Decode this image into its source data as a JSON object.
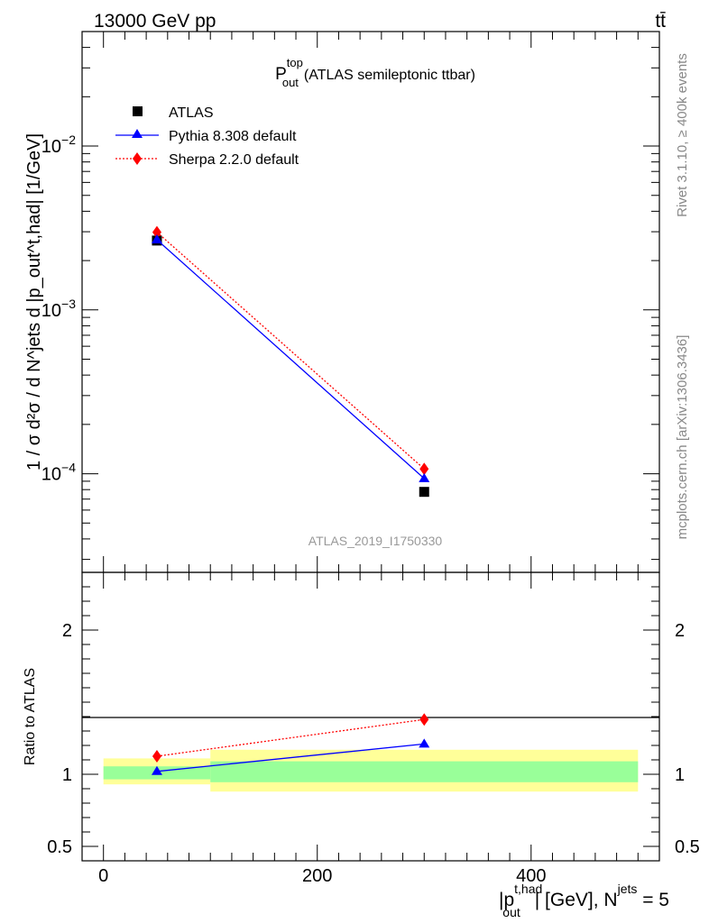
{
  "header": {
    "energy_label": "13000 GeV pp",
    "process_label": "tt̄"
  },
  "side": {
    "rivet_label": "Rivet 3.1.10, ≥ 400k events",
    "site_label": "mcplots.cern.ch [arXiv:1306.3436]"
  },
  "watermark": "ATLAS_2019_I1750330",
  "colors": {
    "atlas": "#000000",
    "pythia": "#0000ff",
    "sherpa": "#ff0000",
    "band_outer": "#ffff99",
    "band_inner": "#99ff99"
  },
  "chart_data": [
    {
      "type": "line",
      "panel": "main",
      "title_main": "P",
      "title_sup": "top",
      "title_sub": "out",
      "title_rest": "(ATLAS semileptonic ttbar)",
      "ylabel": "1 / σ d²σ / d N^jets d |p_out^t,had| [1/GeV]",
      "yscale": "log",
      "ylim": [
        2.5e-05,
        0.05
      ],
      "xlim": [
        -20,
        520
      ],
      "yticks_major": [
        {
          "value": 0.01,
          "base": "10",
          "exp": "−2"
        },
        {
          "value": 0.001,
          "base": "10",
          "exp": "−3"
        },
        {
          "value": 0.0001,
          "base": "10",
          "exp": "−4"
        }
      ],
      "legend_position": "top-left",
      "series": [
        {
          "name": "ATLAS",
          "marker": "square",
          "x": [
            50,
            300
          ],
          "y": [
            0.00265,
            7.75e-05
          ]
        },
        {
          "name": "Pythia 8.308 default",
          "marker": "triangle",
          "line": "solid",
          "x": [
            50,
            300
          ],
          "y": [
            0.00268,
            9.35e-05
          ]
        },
        {
          "name": "Sherpa 2.2.0 default",
          "marker": "diamond",
          "line": "dotted",
          "x": [
            50,
            300
          ],
          "y": [
            0.00298,
            0.000107
          ]
        }
      ]
    },
    {
      "type": "line",
      "panel": "ratio",
      "ylabel": "Ratio to ATLAS",
      "ylim": [
        0.4,
        2.4
      ],
      "xlim": [
        -20,
        520
      ],
      "yticks": [
        {
          "value": 0.5,
          "label": "0.5"
        },
        {
          "value": 1,
          "label": "1"
        },
        {
          "value": 2,
          "label": "2"
        }
      ],
      "xticks": [
        {
          "value": 0,
          "label": "0"
        },
        {
          "value": 200,
          "label": "200"
        },
        {
          "value": 400,
          "label": "400"
        }
      ],
      "xlabel": {
        "open": "|p",
        "sup": "t,had",
        "sub": "out",
        "rest": "| [GeV], N",
        "sup2": "jets",
        "tail": " = 5"
      },
      "bands": [
        {
          "x0": 0,
          "x1": 100,
          "outer": [
            0.93,
            1.11
          ],
          "inner": [
            0.965,
            1.055
          ]
        },
        {
          "x0": 100,
          "x1": 500,
          "outer": [
            0.88,
            1.17
          ],
          "inner": [
            0.945,
            1.09
          ]
        }
      ],
      "series": [
        {
          "name": "Pythia 8.308 default",
          "marker": "triangle",
          "line": "solid",
          "x": [
            50,
            300
          ],
          "y": [
            1.02,
            1.21
          ]
        },
        {
          "name": "Sherpa 2.2.0 default",
          "marker": "diamond",
          "line": "dotted",
          "x": [
            50,
            300
          ],
          "y": [
            1.125,
            1.38
          ]
        }
      ]
    }
  ]
}
